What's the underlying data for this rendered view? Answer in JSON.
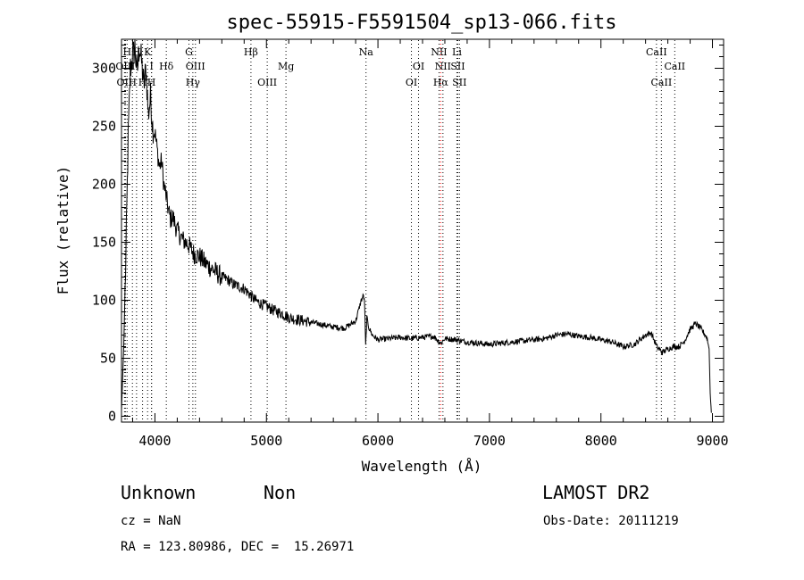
{
  "chart_data": {
    "type": "line",
    "title": "spec-55915-F5591504_sp13-066.fits",
    "xlabel": "Wavelength (Å)",
    "ylabel": "Flux (relative)",
    "xlim": [
      3700,
      9100
    ],
    "ylim": [
      -5,
      325
    ],
    "x_ticks": [
      4000,
      5000,
      6000,
      7000,
      8000,
      9000
    ],
    "y_ticks": [
      0,
      50,
      100,
      150,
      200,
      250,
      300
    ],
    "grid": false,
    "series": [
      {
        "x": [
          3700,
          3720,
          3740,
          3760,
          3780,
          3800,
          3820,
          3840,
          3860,
          3880,
          3900,
          3920,
          3940,
          3960,
          3980,
          4000,
          4020,
          4040,
          4060,
          4080,
          4100,
          4120,
          4140,
          4160,
          4200,
          4250,
          4300,
          4350,
          4400,
          4450,
          4500,
          4550,
          4600,
          4650,
          4700,
          4750,
          4800,
          4850,
          4900,
          4950,
          5000,
          5050,
          5100,
          5150,
          5200,
          5300,
          5400,
          5500,
          5600,
          5700,
          5800,
          5850,
          5870,
          5880,
          5890,
          5900,
          5920,
          5950,
          6000,
          6100,
          6200,
          6300,
          6400,
          6500,
          6563,
          6600,
          6700,
          6800,
          6900,
          7000,
          7100,
          7200,
          7300,
          7400,
          7500,
          7600,
          7700,
          7800,
          7900,
          8000,
          8100,
          8200,
          8300,
          8400,
          8450,
          8500,
          8550,
          8600,
          8650,
          8700,
          8750,
          8800,
          8850,
          8900,
          8950,
          8970,
          8980,
          8990
        ],
        "y": [
          5,
          60,
          140,
          240,
          300,
          310,
          318,
          295,
          320,
          305,
          285,
          300,
          260,
          275,
          250,
          245,
          230,
          215,
          220,
          200,
          190,
          178,
          170,
          172,
          160,
          152,
          148,
          140,
          138,
          132,
          128,
          124,
          120,
          118,
          114,
          112,
          110,
          105,
          100,
          97,
          95,
          92,
          90,
          88,
          85,
          83,
          81,
          79,
          77,
          76,
          82,
          100,
          104,
          98,
          60,
          85,
          76,
          70,
          66,
          67,
          68,
          67,
          68,
          69,
          63,
          67,
          66,
          64,
          63,
          62,
          63,
          64,
          65,
          66,
          67,
          70,
          71,
          69,
          68,
          66,
          64,
          60,
          62,
          70,
          72,
          60,
          55,
          58,
          60,
          60,
          65,
          75,
          80,
          75,
          68,
          58,
          20,
          3
        ]
      }
    ],
    "line_markers": [
      {
        "wavelength": 3727,
        "label": "OII",
        "row": 2,
        "color": "#000000"
      },
      {
        "wavelength": 3735,
        "label": "OIII",
        "row": 1,
        "color": "#000000"
      },
      {
        "wavelength": 3750,
        "label": "H",
        "row": 0,
        "color": "#000000"
      },
      {
        "wavelength": 3798,
        "label": "H",
        "row": 2,
        "color": "#000000"
      },
      {
        "wavelength": 3835,
        "label": "H",
        "row": 0,
        "color": "#000000"
      },
      {
        "wavelength": 3889,
        "label": "H",
        "row": 2,
        "color": "#000000"
      },
      {
        "wavelength": 3934,
        "label": "K",
        "row": 0,
        "color": "#000000"
      },
      {
        "wavelength": 3969,
        "label": "H",
        "row": 2,
        "color": "#000000"
      },
      {
        "wavelength": 3970,
        "label": "I",
        "row": 1,
        "color": "#000000"
      },
      {
        "wavelength": 4102,
        "label": "Hδ",
        "row": 1,
        "color": "#000000"
      },
      {
        "wavelength": 4305,
        "label": "G",
        "row": 0,
        "color": "#000000"
      },
      {
        "wavelength": 4340,
        "label": "Hγ",
        "row": 2,
        "color": "#000000"
      },
      {
        "wavelength": 4363,
        "label": "OIII",
        "row": 1,
        "color": "#000000"
      },
      {
        "wavelength": 4861,
        "label": "Hβ",
        "row": 0,
        "color": "#000000"
      },
      {
        "wavelength": 5007,
        "label": "OIII",
        "row": 2,
        "color": "#000000"
      },
      {
        "wavelength": 5175,
        "label": "Mg",
        "row": 1,
        "color": "#000000"
      },
      {
        "wavelength": 5893,
        "label": "Na",
        "row": 0,
        "color": "#000000"
      },
      {
        "wavelength": 6300,
        "label": "OI",
        "row": 2,
        "color": "#000000"
      },
      {
        "wavelength": 6364,
        "label": "OI",
        "row": 1,
        "color": "#000000"
      },
      {
        "wavelength": 6548,
        "label": "NII",
        "row": 0,
        "color": "#000000"
      },
      {
        "wavelength": 6563,
        "label": "Hα",
        "row": 2,
        "color": "#ff0000"
      },
      {
        "wavelength": 6583,
        "label": "NII",
        "row": 1,
        "color": "#000000"
      },
      {
        "wavelength": 6708,
        "label": "Li",
        "row": 0,
        "color": "#000000"
      },
      {
        "wavelength": 6716,
        "label": "SII",
        "row": 1,
        "color": "#000000"
      },
      {
        "wavelength": 6731,
        "label": "SII",
        "row": 2,
        "color": "#000000"
      },
      {
        "wavelength": 8498,
        "label": "CaII",
        "row": 0,
        "color": "#000000"
      },
      {
        "wavelength": 8542,
        "label": "CaII",
        "row": 2,
        "color": "#000000"
      },
      {
        "wavelength": 8662,
        "label": "CaII",
        "row": 1,
        "color": "#000000"
      }
    ]
  },
  "info": {
    "class": "Unknown",
    "subclass": "Non",
    "survey": "LAMOST DR2",
    "cz": "cz = NaN",
    "obs_date": "Obs-Date: 20111219",
    "coords": "RA = 123.80986, DEC =  15.26971"
  }
}
